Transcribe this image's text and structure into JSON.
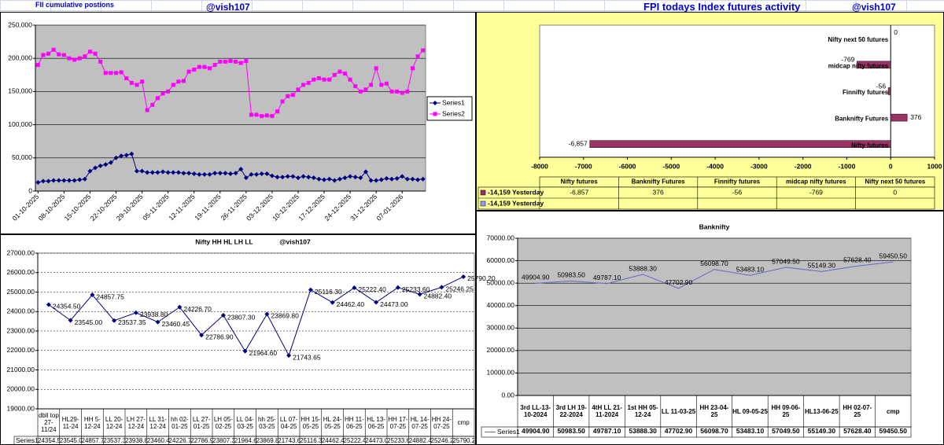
{
  "sheet_cells": [
    "FII cumulative postions",
    "@vish107",
    "FPI todays Index futures activity",
    "@vish107"
  ],
  "chart_data": [
    {
      "type": "line",
      "categories": [
        "01-10-2025",
        null,
        null,
        null,
        null,
        "08-10-2025",
        null,
        null,
        null,
        null,
        "15-10-2025",
        null,
        null,
        null,
        null,
        "22-10-2025",
        null,
        null,
        null,
        null,
        "29-10-2025",
        null,
        null,
        null,
        null,
        "05-11-2025",
        null,
        null,
        null,
        null,
        "12-11-2025",
        null,
        null,
        null,
        null,
        "19-11-2025",
        null,
        null,
        null,
        null,
        "26-11-2025",
        null,
        null,
        null,
        null,
        "03-12-2025",
        null,
        null,
        null,
        null,
        "10-12-2025",
        null,
        null,
        null,
        null,
        "17-12-2025",
        null,
        null,
        null,
        null,
        "24-12-2025",
        null,
        null,
        null,
        null,
        "31-12-2025",
        null,
        null,
        null,
        null,
        "07-01-2026",
        null,
        null,
        null,
        null
      ],
      "series": [
        {
          "name": "Series1",
          "color": "#000080",
          "marker": "diamond",
          "values": [
            13000,
            15000,
            15000,
            16000,
            16000,
            16000,
            16000,
            16000,
            17000,
            18000,
            30000,
            35000,
            38000,
            40000,
            43000,
            50000,
            53000,
            54000,
            56000,
            30000,
            30000,
            28000,
            28000,
            28000,
            29000,
            28000,
            28000,
            28000,
            27000,
            27000,
            26000,
            25000,
            25000,
            25000,
            27000,
            27000,
            27000,
            26000,
            27000,
            33000,
            20000,
            25000,
            25000,
            26000,
            26000,
            23000,
            21000,
            21000,
            22000,
            22000,
            20000,
            22000,
            21000,
            20000,
            18000,
            17000,
            18000,
            16000,
            18000,
            20000,
            22000,
            21000,
            20000,
            29000,
            16000,
            16000,
            17000,
            19000,
            18000,
            19000,
            22000,
            18000,
            18000,
            17000,
            18000
          ]
        },
        {
          "name": "Series2",
          "color": "#ff00ff",
          "marker": "square",
          "values": [
            190000,
            205000,
            207000,
            213000,
            206000,
            205000,
            200000,
            198000,
            200000,
            203000,
            210000,
            207000,
            195000,
            178000,
            178000,
            178000,
            179000,
            170000,
            163000,
            160000,
            165000,
            122000,
            130000,
            140000,
            147000,
            150000,
            160000,
            165000,
            166000,
            180000,
            183000,
            187000,
            187000,
            185000,
            190000,
            195000,
            195000,
            196000,
            195000,
            193000,
            196000,
            115000,
            115000,
            113000,
            114000,
            113000,
            120000,
            135000,
            143000,
            145000,
            153000,
            160000,
            163000,
            168000,
            170000,
            168000,
            168000,
            175000,
            180000,
            177000,
            168000,
            158000,
            150000,
            153000,
            160000,
            185000,
            160000,
            162000,
            150000,
            150000,
            148000,
            150000,
            185000,
            203000,
            212000
          ]
        }
      ],
      "ylim": [
        0,
        250000
      ],
      "yticks": [
        0,
        {
          "value": 50000,
          "label": "50,000"
        },
        {
          "value": 100000,
          "label": "100,000"
        },
        {
          "value": 150000,
          "label": "150,000"
        },
        {
          "value": 200000,
          "label": "200,000"
        },
        {
          "value": 250000,
          "label": "250,000"
        }
      ],
      "grid": true,
      "legend": "right",
      "plot_color": "#c0c0c0"
    },
    {
      "type": "hbar",
      "categories": [
        "Nifty futures",
        "Banknifty Futures",
        "Finnifty futures",
        "midcap nifty futures",
        "Nifty next 50 futures"
      ],
      "series": [
        {
          "name": "-14,159 Yesterday",
          "color": "#993366",
          "values": [
            -6857,
            376,
            -56,
            -769,
            0
          ],
          "value_labels": [
            "-6,857",
            "376",
            "-56",
            "-769",
            "0"
          ]
        },
        {
          "name": "-14,159 Yesterday",
          "color": "#9999ff",
          "values": [
            null,
            null,
            null,
            null,
            null
          ]
        }
      ],
      "xlim": [
        -8000,
        1000
      ],
      "xticks": [
        -8000,
        -7000,
        -6000,
        -5000,
        -4000,
        -3000,
        -2000,
        -1000,
        0,
        1000
      ],
      "data_table": true,
      "plot_color": "#ffffff",
      "background": "#ffff99"
    },
    {
      "type": "line",
      "title": "Nifty HH HL LH LL",
      "annotation": "@vish107",
      "categories": [
        "dbll top 27-11/24",
        "HL29-11-24",
        "HH 5-12-24",
        "LL 20-12-24",
        "LH 27-12-24",
        "LL 31-12-24",
        "hh 02-01-25",
        "LL 27-01-25",
        "LH 05-02-25",
        "LL 04-03-25",
        "hh 25-03-25",
        "LL 07-04-25",
        "HH 15-05-25",
        "HL 24-05-25",
        "HH 11-06-25",
        "HL 13-06-25",
        "HH 17-07-25",
        "HL 14-07-25",
        "HH 24-07-25",
        "cmp"
      ],
      "series": [
        {
          "name": "Series1",
          "color": "#000080",
          "marker": "diamond",
          "values": [
            24354.5,
            23545,
            24857.75,
            23537.35,
            23938.8,
            23460.45,
            24226.7,
            22786.9,
            23807.3,
            21964.6,
            23869.8,
            21743.65,
            25116.3,
            24462.4,
            25222.4,
            24473,
            25233.6,
            24882.4,
            25246.25,
            25790.2
          ],
          "value_labels": [
            "24354.50",
            "23545.00",
            "24857.75",
            "23537.35",
            "23938.80",
            "23460.45",
            "24226.70",
            "22786.90",
            "23807.30",
            "21964.60",
            "23869.80",
            "21743.65",
            "25116.30",
            "24462.40",
            "25222.40",
            "24473.00",
            "25233.60",
            "24882.40",
            "25246.25",
            "25790.20"
          ]
        }
      ],
      "ylim": [
        19000,
        27000
      ],
      "yticks": [
        {
          "value": 19000,
          "label": "19000.00"
        },
        {
          "value": 20000,
          "label": "20000.00"
        },
        {
          "value": 21000,
          "label": "21000.00"
        },
        {
          "value": 22000,
          "label": "22000.00"
        },
        {
          "value": 23000,
          "label": "23000.00"
        },
        {
          "value": 24000,
          "label": "24000.00"
        },
        {
          "value": 25000,
          "label": "25000.00"
        },
        {
          "value": 26000,
          "label": "26000.00"
        },
        {
          "value": 27000,
          "label": "27000.00"
        }
      ],
      "grid": true,
      "grid_style": "dashed",
      "data_table": true,
      "plot_color": "#ffffff"
    },
    {
      "type": "line",
      "title": "Banknifty",
      "categories": [
        "3rd LL-13-10-2024",
        "3rd LH 19-22-2024",
        "4tH LL 21-11-2024",
        "1st HH 05-12-24",
        "LL 11-03-25",
        "HH 23-04-25",
        "HL 09-05-25",
        "HH 09-06-25",
        "HL13-06-25",
        "HH 02-07-25",
        "cmp"
      ],
      "series": [
        {
          "name": "Series1",
          "color": "#6666cc",
          "marker": "none",
          "values": [
            49904.9,
            50983.5,
            49787.1,
            53888.3,
            47702.9,
            56098.7,
            53483.1,
            57049.5,
            55149.3,
            57628.4,
            59450.5
          ],
          "value_labels": [
            "49904.90",
            "50983.50",
            "49787.10",
            "53888.30",
            "47702.90",
            "56098.70",
            "53483.10",
            "57049.50",
            "55149.30",
            "57628.40",
            "59450.50"
          ]
        }
      ],
      "ylim": [
        0,
        70000
      ],
      "yticks": [
        {
          "value": 0,
          "label": "0.00"
        },
        {
          "value": 10000,
          "label": "10000.00"
        },
        {
          "value": 20000,
          "label": "20000.00"
        },
        {
          "value": 30000,
          "label": "30000.00"
        },
        {
          "value": 40000,
          "label": "40000.00"
        },
        {
          "value": 50000,
          "label": "50000.00"
        },
        {
          "value": 60000,
          "label": "60000.00"
        },
        {
          "value": 70000,
          "label": "70000.00"
        }
      ],
      "grid": true,
      "data_table": true,
      "plot_color": "#c0c0c0"
    }
  ]
}
